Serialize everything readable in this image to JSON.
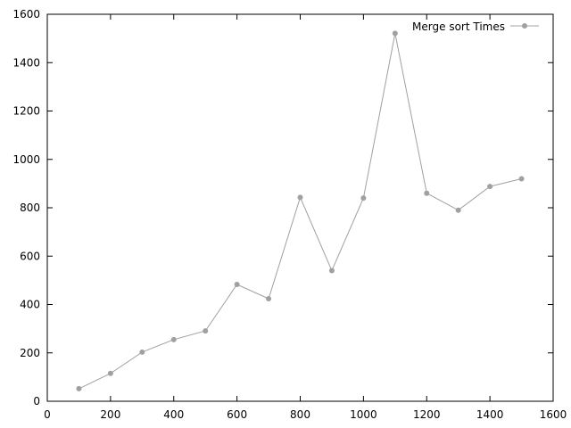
{
  "chart_data": {
    "type": "line",
    "title": "",
    "xlabel": "",
    "ylabel": "",
    "xlim": [
      0,
      1600
    ],
    "ylim": [
      0,
      1600
    ],
    "xticks": [
      0,
      200,
      400,
      600,
      800,
      1000,
      1200,
      1400,
      1600
    ],
    "yticks": [
      0,
      200,
      400,
      600,
      800,
      1000,
      1200,
      1400,
      1600
    ],
    "xtick_labels": [
      "0",
      "200",
      "400",
      "600",
      "800",
      "1000",
      "1200",
      "1400",
      "1600"
    ],
    "ytick_labels": [
      "0",
      "200",
      "400",
      "600",
      "800",
      "1000",
      "1200",
      "1400",
      "1600"
    ],
    "grid": false,
    "legend_position": "top-right",
    "series": [
      {
        "name": "Merge sort Times",
        "color": "#a0a0a0",
        "marker": "circle",
        "x": [
          100,
          200,
          300,
          400,
          500,
          600,
          700,
          800,
          900,
          1000,
          1100,
          1200,
          1300,
          1400,
          1500
        ],
        "y": [
          52,
          115,
          203,
          255,
          291,
          483,
          424,
          843,
          540,
          840,
          1521,
          860,
          790,
          888,
          920
        ]
      }
    ]
  }
}
